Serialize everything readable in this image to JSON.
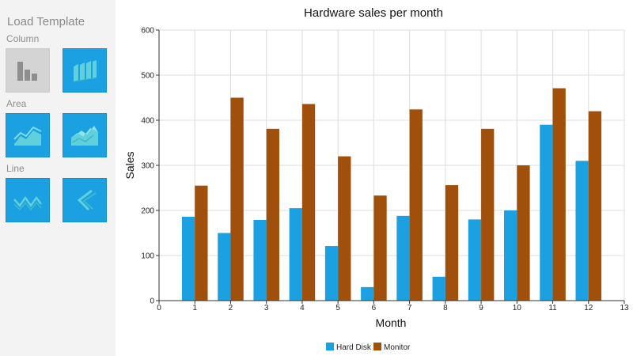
{
  "sidebar": {
    "title": "Load Template",
    "sections": [
      {
        "label": "Column",
        "tiles": [
          {
            "icon": "grey-column-chart-icon",
            "selected": true
          },
          {
            "icon": "blue-3d-column-chart-icon",
            "selected": false
          }
        ]
      },
      {
        "label": "Area",
        "tiles": [
          {
            "icon": "area-chart-icon",
            "selected": false
          },
          {
            "icon": "3d-area-chart-icon",
            "selected": false
          }
        ]
      },
      {
        "label": "Line",
        "tiles": [
          {
            "icon": "line-chart-icon",
            "selected": false
          },
          {
            "icon": "3d-line-chart-icon",
            "selected": false
          }
        ]
      }
    ]
  },
  "colors": {
    "hard_disk": "#1ba1e2",
    "monitor": "#a0500a",
    "tile_blue": "#1ba1e2",
    "tile_grey": "#d4d4d4"
  },
  "chart_data": {
    "type": "bar",
    "title": "Hardware sales per month",
    "xlabel": "Month",
    "ylabel": "Sales",
    "x": [
      1,
      2,
      3,
      4,
      5,
      6,
      7,
      8,
      9,
      10,
      11,
      12
    ],
    "x_ticks": [
      0,
      1,
      2,
      3,
      4,
      5,
      6,
      7,
      8,
      9,
      10,
      11,
      12,
      13
    ],
    "xlim": [
      0,
      13
    ],
    "y_ticks": [
      0,
      100,
      200,
      300,
      400,
      500,
      600
    ],
    "ylim": [
      0,
      600
    ],
    "grid": true,
    "legend_position": "bottom",
    "series": [
      {
        "name": "Hard Disk",
        "values": [
          186,
          150,
          179,
          205,
          121,
          30,
          188,
          53,
          180,
          200,
          390,
          310
        ]
      },
      {
        "name": "Monitor",
        "values": [
          255,
          450,
          381,
          436,
          320,
          233,
          424,
          256,
          381,
          300,
          471,
          420
        ]
      }
    ]
  }
}
